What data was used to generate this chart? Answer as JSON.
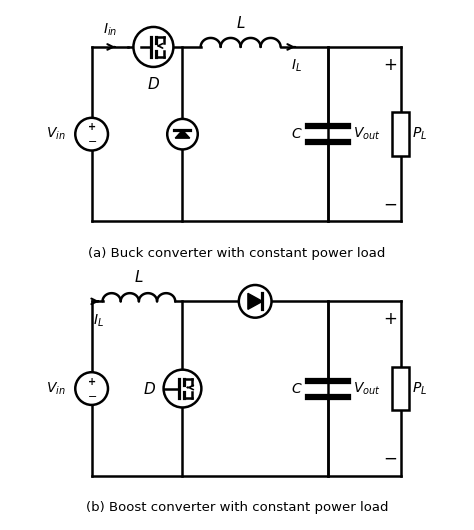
{
  "title_a": "(a) Buck converter with constant power load",
  "title_b": "(b) Boost converter with constant power load",
  "bg_color": "#ffffff",
  "line_color": "#000000",
  "lw": 1.8
}
